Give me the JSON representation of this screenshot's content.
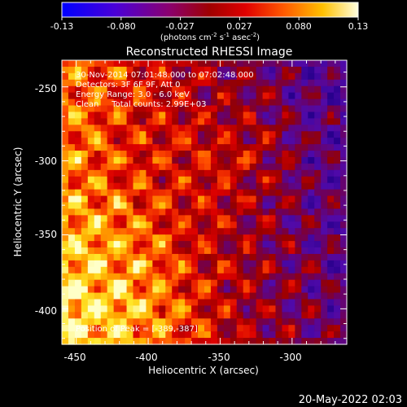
{
  "colorbar": {
    "ticks": [
      "-0.13",
      "-0.080",
      "-0.027",
      "0.027",
      "0.080",
      "0.13"
    ],
    "units": "(photons cm",
    "units_sup1": "-2",
    "units_mid": " s",
    "units_sup2": "-1",
    "units_end": " asec",
    "units_sup3": "-2",
    "units_close": ")"
  },
  "title": "Reconstructed RHESSI Image",
  "annotations": {
    "line1": "30-Nov-2014 07:01:48.000 to 07:02:48.000",
    "line2": "Detectors: 3F 6F 9F, Att 0",
    "line3": "Energy Range: 3.0 - 6.0 keV",
    "line4": "Clean     Total counts: 2.99E+03",
    "peak": "Position of Peak = [-389,-387]"
  },
  "footer": {
    "date": "20-May-2022 02:03"
  },
  "chart_data": {
    "type": "heatmap",
    "title": "Reconstructed RHESSI Image",
    "xlabel": "Heliocentric X (arcsec)",
    "ylabel": "Heliocentric Y (arcsec)",
    "xlim": [
      -460,
      -262
    ],
    "ylim": [
      -424,
      -232
    ],
    "x_ticks": [
      -450,
      -400,
      -350,
      -300
    ],
    "y_ticks": [
      -250,
      -300,
      -350,
      -400
    ],
    "x_tick_labels": [
      "-450",
      "-400",
      "-350",
      "-300"
    ],
    "y_tick_labels": [
      "-250",
      "-300",
      "-350",
      "-400"
    ],
    "color_range": [
      -0.13,
      0.13
    ],
    "colormap": "blue-purple-red-yellow-white",
    "peak_position": [
      -389,
      -387
    ]
  }
}
